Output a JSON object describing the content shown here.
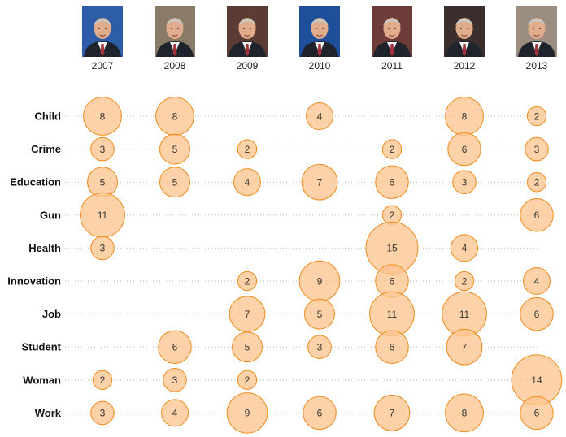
{
  "chart_data": {
    "type": "bubble",
    "title": "",
    "years": [
      "2007",
      "2008",
      "2009",
      "2010",
      "2011",
      "2012",
      "2013"
    ],
    "topics": [
      "Child",
      "Crime",
      "Education",
      "Gun",
      "Health",
      "Innovation",
      "Job",
      "Student",
      "Woman",
      "Work"
    ],
    "values": {
      "Child": [
        8,
        8,
        null,
        4,
        null,
        8,
        2
      ],
      "Crime": [
        3,
        5,
        2,
        null,
        2,
        6,
        3
      ],
      "Education": [
        5,
        5,
        4,
        7,
        6,
        3,
        2
      ],
      "Gun": [
        11,
        null,
        null,
        null,
        2,
        null,
        6
      ],
      "Health": [
        3,
        null,
        null,
        null,
        15,
        4,
        null
      ],
      "Innovation": [
        null,
        null,
        2,
        9,
        6,
        2,
        4
      ],
      "Job": [
        null,
        null,
        7,
        5,
        11,
        11,
        6
      ],
      "Student": [
        null,
        6,
        5,
        3,
        6,
        7,
        null
      ],
      "Woman": [
        2,
        3,
        2,
        null,
        null,
        null,
        14
      ],
      "Work": [
        3,
        4,
        9,
        6,
        7,
        8,
        6
      ]
    },
    "max_value": 15
  },
  "colors": {
    "bubble_fill": "#fcc590",
    "bubble_stroke": "#f08a1c",
    "grid": "#b8b8b8"
  },
  "portraits": [
    {
      "year": "2007",
      "icon": "speaker-portrait-icon",
      "bg": "#2d5da8"
    },
    {
      "year": "2008",
      "icon": "speaker-portrait-icon",
      "bg": "#8a7a68"
    },
    {
      "year": "2009",
      "icon": "speaker-portrait-icon",
      "bg": "#5a3c34"
    },
    {
      "year": "2010",
      "icon": "speaker-portrait-icon",
      "bg": "#1e4f9a"
    },
    {
      "year": "2011",
      "icon": "speaker-portrait-icon",
      "bg": "#6e3c38"
    },
    {
      "year": "2012",
      "icon": "speaker-portrait-icon",
      "bg": "#3b2e2c"
    },
    {
      "year": "2013",
      "icon": "speaker-portrait-icon",
      "bg": "#9b8e80"
    }
  ]
}
